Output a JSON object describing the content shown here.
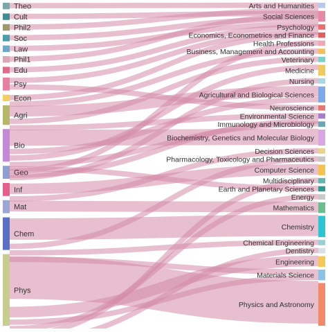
{
  "link_color": "#d48aa6",
  "left_nodes": [
    {
      "label": "Theo",
      "color": "#7aa8a8",
      "value": 1
    },
    {
      "label": "Cult",
      "color": "#3f8f8f",
      "value": 1
    },
    {
      "label": "Phil2",
      "color": "#9a9a6a",
      "value": 1
    },
    {
      "label": "Soc",
      "color": "#4b9da8",
      "value": 1
    },
    {
      "label": "Law",
      "color": "#6aaac8",
      "value": 1
    },
    {
      "label": "Phil1",
      "color": "#d9a7b6",
      "value": 1
    },
    {
      "label": "Edu",
      "color": "#e06a8a",
      "value": 1
    },
    {
      "label": "Psy",
      "color": "#e67fa0",
      "value": 2
    },
    {
      "label": "Econ",
      "color": "#f3cf63",
      "value": 1
    },
    {
      "label": "Agri",
      "color": "#b5b86a",
      "value": 3
    },
    {
      "label": "Bio",
      "color": "#c38ad8",
      "value": 5
    },
    {
      "label": "Geo",
      "color": "#8f9fd2",
      "value": 2
    },
    {
      "label": "Inf",
      "color": "#e2608a",
      "value": 2
    },
    {
      "label": "Mat",
      "color": "#9aa7d6",
      "value": 2
    },
    {
      "label": "Chem",
      "color": "#5a6fc6",
      "value": 5
    },
    {
      "label": "Phys",
      "color": "#c7cd8e",
      "value": 11
    }
  ],
  "right_nodes": [
    {
      "label": "Arts and Humanities",
      "color": "#b7c9e6",
      "value": 1
    },
    {
      "label": "Social Sciences",
      "color": "#e58aa2",
      "value": 2
    },
    {
      "label": "Psychology",
      "color": "#e96f6f",
      "value": 1
    },
    {
      "label": "Economics, Econometrics and Finance",
      "color": "#e05d5d",
      "value": 1
    },
    {
      "label": "Health Professions",
      "color": "#f0a7b6",
      "value": 1
    },
    {
      "label": "Business, Management and Accounting",
      "color": "#f3c05c",
      "value": 1
    },
    {
      "label": "Veterinary",
      "color": "#7bd1c9",
      "value": 1
    },
    {
      "label": "Medicine",
      "color": "#f1c962",
      "value": 2
    },
    {
      "label": "Nursing",
      "color": "#a7d8e8",
      "value": 1
    },
    {
      "label": "Agricultural and Biological Sciences",
      "color": "#7fa8e6",
      "value": 3
    },
    {
      "label": "Neuroscience",
      "color": "#e07a6f",
      "value": 1
    },
    {
      "label": "Environmental Science",
      "color": "#a57fc7",
      "value": 1
    },
    {
      "label": "Immunology and Microbiology",
      "color": "#6aa6b8",
      "value": 1
    },
    {
      "label": "Biochemistry, Genetics and Molecular Biology",
      "color": "#d8a7e2",
      "value": 3
    },
    {
      "label": "Decision Sciences",
      "color": "#e7d38a",
      "value": 1
    },
    {
      "label": "Pharmacology, Toxicology and Pharmaceutics",
      "color": "#c6c6c6",
      "value": 1
    },
    {
      "label": "Computer Science",
      "color": "#f4c24f",
      "value": 2
    },
    {
      "label": "Multidisciplinary",
      "color": "#5fb7b0",
      "value": 1
    },
    {
      "label": "Earth and Planetary Sciences",
      "color": "#2f9a8f",
      "value": 1
    },
    {
      "label": "Energy",
      "color": "#c9c9c9",
      "value": 1
    },
    {
      "label": "Mathematics",
      "color": "#6bbf8f",
      "value": 2
    },
    {
      "label": "Chemistry",
      "color": "#2ec5d2",
      "value": 4
    },
    {
      "label": "Chemical Engineering",
      "color": "#9ad1d6",
      "value": 1
    },
    {
      "label": "Dentistry",
      "color": "#d9e1e8",
      "value": 1
    },
    {
      "label": "Engineering",
      "color": "#f4c95a",
      "value": 2
    },
    {
      "label": "Materials Science",
      "color": "#8ac3e6",
      "value": 2
    },
    {
      "label": "Physics and Astronomy",
      "color": "#f08a6a",
      "value": 8
    }
  ],
  "links": [
    {
      "source": "Theo",
      "target": "Arts and Humanities",
      "value": 1
    },
    {
      "source": "Cult",
      "target": "Social Sciences",
      "value": 1
    },
    {
      "source": "Phil2",
      "target": "Arts and Humanities",
      "value": 1
    },
    {
      "source": "Soc",
      "target": "Social Sciences",
      "value": 1
    },
    {
      "source": "Law",
      "target": "Social Sciences",
      "value": 1
    },
    {
      "source": "Phil1",
      "target": "Arts and Humanities",
      "value": 1
    },
    {
      "source": "Edu",
      "target": "Psychology",
      "value": 1
    },
    {
      "source": "Psy",
      "target": "Psychology",
      "value": 1
    },
    {
      "source": "Psy",
      "target": "Neuroscience",
      "value": 1
    },
    {
      "source": "Econ",
      "target": "Economics, Econometrics and Finance",
      "value": 1
    },
    {
      "source": "Econ",
      "target": "Business, Management and Accounting",
      "value": 1
    },
    {
      "source": "Agri",
      "target": "Agricultural and Biological Sciences",
      "value": 2
    },
    {
      "source": "Agri",
      "target": "Veterinary",
      "value": 1
    },
    {
      "source": "Agri",
      "target": "Environmental Science",
      "value": 1
    },
    {
      "source": "Bio",
      "target": "Biochemistry, Genetics and Molecular Biology",
      "value": 3
    },
    {
      "source": "Bio",
      "target": "Agricultural and Biological Sciences",
      "value": 1
    },
    {
      "source": "Bio",
      "target": "Medicine",
      "value": 1
    },
    {
      "source": "Bio",
      "target": "Immunology and Microbiology",
      "value": 1
    },
    {
      "source": "Bio",
      "target": "Health Professions",
      "value": 1
    },
    {
      "source": "Bio",
      "target": "Nursing",
      "value": 1
    },
    {
      "source": "Geo",
      "target": "Earth and Planetary Sciences",
      "value": 1
    },
    {
      "source": "Geo",
      "target": "Environmental Science",
      "value": 1
    },
    {
      "source": "Inf",
      "target": "Computer Science",
      "value": 2
    },
    {
      "source": "Inf",
      "target": "Decision Sciences",
      "value": 1
    },
    {
      "source": "Mat",
      "target": "Mathematics",
      "value": 2
    },
    {
      "source": "Chem",
      "target": "Chemistry",
      "value": 4
    },
    {
      "source": "Chem",
      "target": "Pharmacology, Toxicology and Pharmaceutics",
      "value": 1
    },
    {
      "source": "Chem",
      "target": "Chemical Engineering",
      "value": 1
    },
    {
      "source": "Chem",
      "target": "Materials Science",
      "value": 1
    },
    {
      "source": "Phys",
      "target": "Physics and Astronomy",
      "value": 8
    },
    {
      "source": "Phys",
      "target": "Engineering",
      "value": 2
    },
    {
      "source": "Phys",
      "target": "Materials Science",
      "value": 1
    },
    {
      "source": "Phys",
      "target": "Energy",
      "value": 1
    },
    {
      "source": "Phys",
      "target": "Multidisciplinary",
      "value": 1
    },
    {
      "source": "Phys",
      "target": "Dentistry",
      "value": 1
    }
  ]
}
